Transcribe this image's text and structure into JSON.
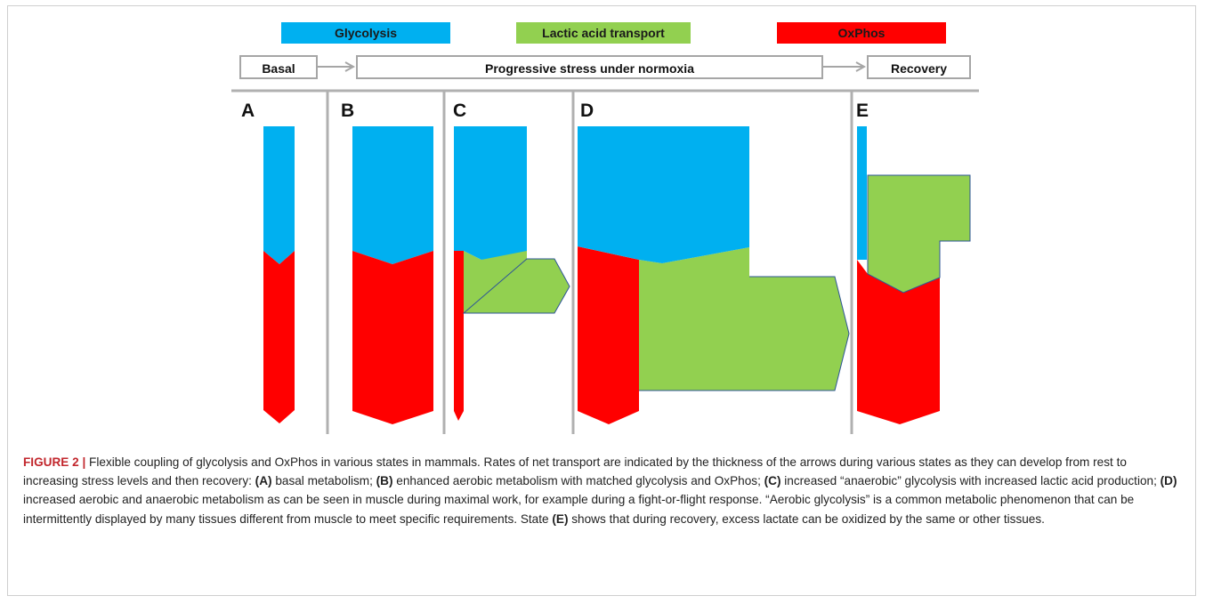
{
  "legend": {
    "glycolysis": {
      "label": "Glycolysis",
      "color": "#00B0F0"
    },
    "lactic": {
      "label": "Lactic acid transport",
      "color": "#92D050"
    },
    "oxphos": {
      "label": "OxPhos",
      "color": "#FF0000"
    }
  },
  "phases": {
    "basal": "Basal",
    "stress": "Progressive stress under normoxia",
    "recovery": "Recovery"
  },
  "panels": {
    "a": "A",
    "b": "B",
    "c": "C",
    "d": "D",
    "e": "E"
  },
  "colors": {
    "divider": "#B0B0B0",
    "arrow_outline": "#2E5597",
    "caption_label": "#C2272D"
  },
  "caption": {
    "label": "FIGURE 2 |",
    "intro": " Flexible coupling of glycolysis and OxPhos in various states in mammals. Rates of net transport are indicated by the thickness of the arrows during various states as they can develop from rest to increasing stress levels and then recovery: ",
    "a_ref": "(A)",
    "a_text": " basal metabolism; ",
    "b_ref": "(B)",
    "b_text": " enhanced aerobic metabolism with matched glycolysis and OxPhos; ",
    "c_ref": "(C)",
    "c_text": " increased “anaerobic” glycolysis with increased lactic acid production; ",
    "d_ref": "(D)",
    "d_text": " increased aerobic and anaerobic metabolism as can be seen in muscle during maximal work, for example during a fight-or-flight response. “Aerobic glycolysis” is a common metabolic phenomenon that can be intermittently displayed by many tissues different from muscle to meet specific requirements. State ",
    "e_ref": "(E)",
    "e_text": " shows that during recovery, excess lactate can be oxidized by the same or other tissues."
  }
}
